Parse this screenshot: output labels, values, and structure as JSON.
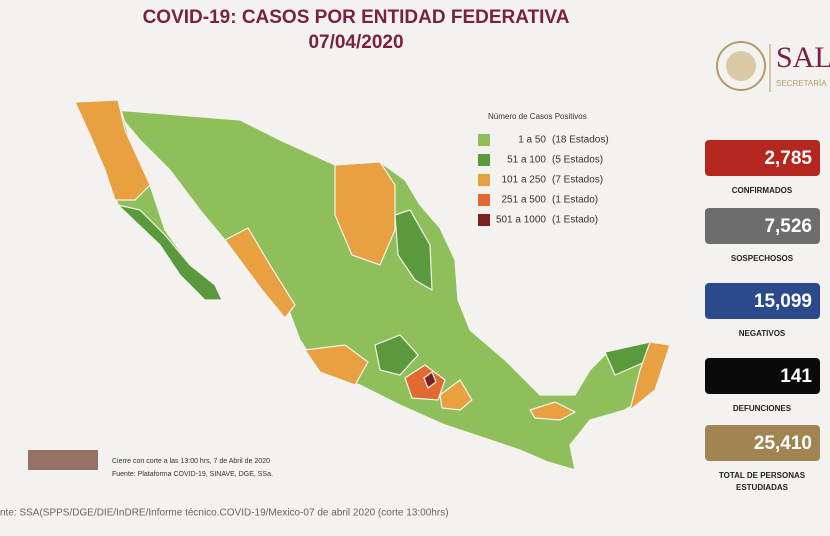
{
  "header": {
    "title": "COVID-19: CASOS POR ENTIDAD FEDERATIVA",
    "date": "07/04/2020",
    "logo": "SAL",
    "logo_sub": "SECRETARÍA"
  },
  "legend": {
    "title": "Número de Casos Positivos",
    "rows": [
      {
        "range": "1 a 50",
        "count": "(18 Estados)"
      },
      {
        "range": "51 a 100",
        "count": "(5 Estados)"
      },
      {
        "range": "101 a 250",
        "count": "(7 Estados)"
      },
      {
        "range": "251 a 500",
        "count": "(1 Estado)"
      },
      {
        "range": "501 a 1000",
        "count": "(1 Estado)"
      }
    ]
  },
  "stats": [
    {
      "value": "2,785",
      "label": "CONFIRMADOS"
    },
    {
      "value": "7,526",
      "label": "SOSPECHOSOS"
    },
    {
      "value": "15,099",
      "label": "NEGATIVOS"
    },
    {
      "value": "141",
      "label": "DEFUNCIONES"
    },
    {
      "value": "25,410",
      "label": "TOTAL DE PERSONAS ESTUDIADAS"
    }
  ],
  "notes": [
    "Cierre con corte a las 13:00 hrs, 7 de Abril de 2020",
    "Fuente: Plataforma COVID-19, SINAVE, DGE, SSa."
  ],
  "footer": "nte: SSA(SPPS/DGE/DIE/InDRE/Informe técnico.COVID-19/Mexico-07 de abril 2020 (corte 13:00hrs)"
}
